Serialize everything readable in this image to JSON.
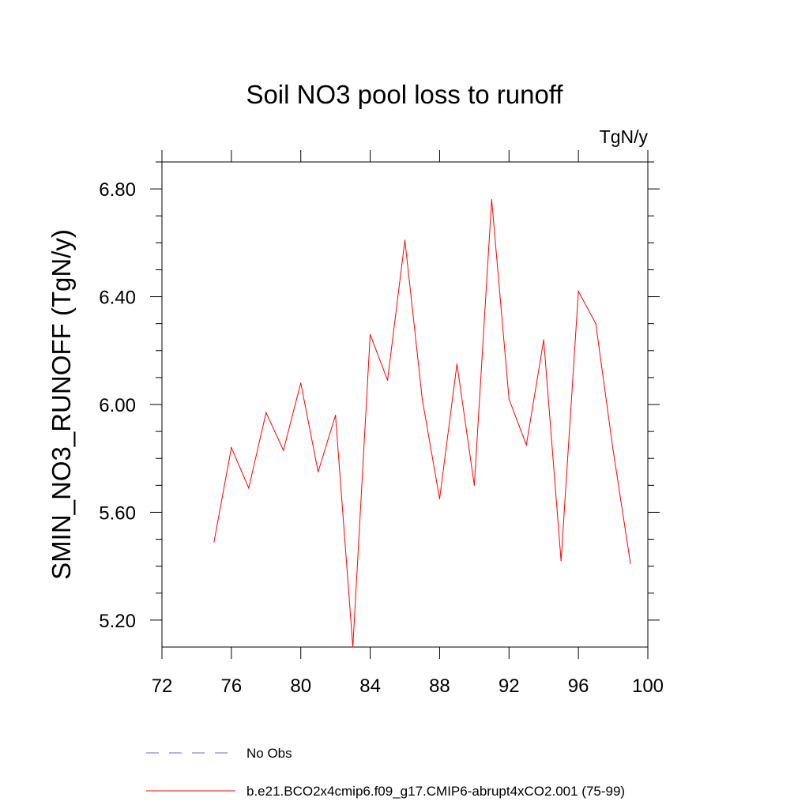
{
  "chart_data": {
    "type": "line",
    "title": "Soil NO3 pool loss to runoff",
    "units": "TgN/y",
    "xlabel": "",
    "ylabel": "SMIN_NO3_RUNOFF  (TgN/y)",
    "xlim": [
      72,
      100
    ],
    "ylim": [
      5.1,
      6.9
    ],
    "x_ticks": [
      "72",
      "76",
      "80",
      "84",
      "88",
      "92",
      "96",
      "100"
    ],
    "y_ticks": [
      "5.20",
      "5.60",
      "6.00",
      "6.40",
      "6.80"
    ],
    "grid": false,
    "legend_position": "bottom",
    "legend": [
      {
        "label": "No Obs",
        "color": "#6a6acd",
        "style": "dashed"
      },
      {
        "label": "b.e21.BCO2x4cmip6.f09_g17.CMIP6-abrupt4xCO2.001 (75-99)",
        "color": "#ff0000",
        "style": "solid"
      }
    ],
    "series": [
      {
        "name": "b.e21.BCO2x4cmip6.f09_g17.CMIP6-abrupt4xCO2.001 (75-99)",
        "color": "#ff0000",
        "x": [
          75,
          76,
          77,
          78,
          79,
          80,
          81,
          82,
          83,
          84,
          85,
          86,
          87,
          88,
          89,
          90,
          91,
          92,
          93,
          94,
          95,
          96,
          97,
          98,
          99
        ],
        "y": [
          5.49,
          5.84,
          5.69,
          5.97,
          5.83,
          6.08,
          5.75,
          5.96,
          5.1,
          6.26,
          6.09,
          6.61,
          6.02,
          5.65,
          6.15,
          5.7,
          6.76,
          6.02,
          5.85,
          6.24,
          5.42,
          6.42,
          6.3,
          5.83,
          5.41
        ]
      }
    ]
  }
}
